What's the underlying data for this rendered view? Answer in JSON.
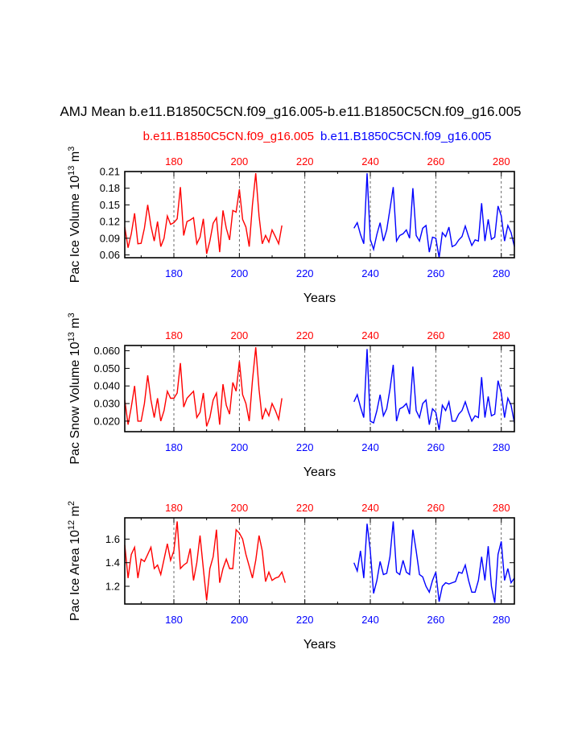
{
  "title": "AMJ Mean b.e11.B1850C5CN.f09_g16.005-b.e11.B1850C5CN.f09_g16.005",
  "legend": {
    "left": "b.e11.B1850C5CN.f09_g16.005",
    "right": "b.e11.B1850C5CN.f09_g16.005"
  },
  "colors": {
    "red_case": "#ff0000",
    "blue_case": "#0000ff",
    "axis": "#000000"
  },
  "chart_data": [
    {
      "type": "line",
      "ylabel": "Pac Ice Volume 10^13 m^3",
      "ylabel_parts": {
        "main": "Pac Ice Volume 10",
        "exp1": "13",
        "mid": " m",
        "exp2": "3"
      },
      "xlabel": "Years",
      "xlim": [
        165,
        284
      ],
      "ylim": [
        0.055,
        0.21
      ],
      "yticks": [
        0.06,
        0.09,
        0.12,
        0.15,
        0.18,
        0.21
      ],
      "ytick_labels": [
        "0.06",
        "0.09",
        "0.12",
        "0.15",
        "0.18",
        "0.21"
      ],
      "top_xticks": [
        "180",
        "200",
        "220",
        "240",
        "260",
        "280"
      ],
      "bottom_xticks": [
        "180",
        "200",
        "220",
        "240",
        "260",
        "280"
      ],
      "vlines": [
        180,
        200,
        220,
        240,
        260,
        280
      ],
      "series": [
        {
          "color": "red",
          "x": [
            165,
            166,
            167,
            168,
            169,
            170,
            171,
            172,
            173,
            174,
            175,
            176,
            177,
            178,
            179,
            180,
            181,
            182,
            183,
            184,
            185,
            186,
            187,
            188,
            189,
            190,
            191,
            192,
            193,
            194,
            195,
            196,
            197,
            198,
            199,
            200,
            201,
            202,
            203,
            204,
            205,
            206,
            207,
            208,
            209,
            210,
            211,
            212,
            213,
            214
          ],
          "values": [
            0.11,
            0.073,
            0.098,
            0.135,
            0.08,
            0.081,
            0.108,
            0.15,
            0.112,
            0.085,
            0.12,
            0.075,
            0.09,
            0.13,
            0.115,
            0.118,
            0.125,
            0.182,
            0.095,
            0.12,
            0.123,
            0.127,
            0.08,
            0.092,
            0.125,
            0.062,
            0.085,
            0.117,
            0.127,
            0.065,
            0.14,
            0.108,
            0.087,
            0.14,
            0.137,
            0.178,
            0.124,
            0.11,
            0.075,
            0.15,
            0.207,
            0.13,
            0.08,
            0.095,
            0.083,
            0.105,
            0.093,
            0.08,
            0.113,
            null
          ]
        },
        {
          "color": "blue",
          "x": [
            235,
            236,
            237,
            238,
            239,
            240,
            241,
            242,
            243,
            244,
            245,
            246,
            247,
            248,
            249,
            250,
            251,
            252,
            253,
            254,
            255,
            256,
            257,
            258,
            259,
            260,
            261,
            262,
            263,
            264,
            265,
            266,
            267,
            268,
            269,
            270,
            271,
            272,
            273,
            274,
            275,
            276,
            277,
            278,
            279,
            280,
            281,
            282,
            283,
            284
          ],
          "values": [
            0.108,
            0.118,
            0.097,
            0.08,
            0.207,
            0.088,
            0.07,
            0.097,
            0.118,
            0.085,
            0.105,
            0.142,
            0.182,
            0.085,
            0.095,
            0.098,
            0.105,
            0.09,
            0.18,
            0.095,
            0.085,
            0.108,
            0.113,
            0.065,
            0.092,
            0.09,
            0.055,
            0.1,
            0.093,
            0.11,
            0.075,
            0.078,
            0.087,
            0.093,
            0.112,
            0.093,
            0.077,
            0.087,
            0.085,
            0.153,
            0.085,
            0.124,
            0.088,
            0.092,
            0.148,
            0.13,
            0.085,
            0.113,
            0.1,
            0.075
          ]
        }
      ]
    },
    {
      "type": "line",
      "ylabel": "Pac Snow Volume 10^13 m^3",
      "ylabel_parts": {
        "main": "Pac Snow Volume 10",
        "exp1": "13",
        "mid": " m",
        "exp2": "3"
      },
      "xlabel": "Years",
      "xlim": [
        165,
        284
      ],
      "ylim": [
        0.014,
        0.063
      ],
      "yticks": [
        0.02,
        0.03,
        0.04,
        0.05,
        0.06
      ],
      "ytick_labels": [
        "0.020",
        "0.030",
        "0.040",
        "0.050",
        "0.060"
      ],
      "top_xticks": [
        "180",
        "200",
        "220",
        "240",
        "260",
        "280"
      ],
      "bottom_xticks": [
        "180",
        "200",
        "220",
        "240",
        "260",
        "280"
      ],
      "vlines": [
        180,
        200,
        220,
        240,
        260,
        280
      ],
      "series": [
        {
          "color": "red",
          "x": [
            165,
            166,
            167,
            168,
            169,
            170,
            171,
            172,
            173,
            174,
            175,
            176,
            177,
            178,
            179,
            180,
            181,
            182,
            183,
            184,
            185,
            186,
            187,
            188,
            189,
            190,
            191,
            192,
            193,
            194,
            195,
            196,
            197,
            198,
            199,
            200,
            201,
            202,
            203,
            204,
            205,
            206,
            207,
            208,
            209,
            210,
            211,
            212,
            213,
            214
          ],
          "values": [
            0.032,
            0.018,
            0.028,
            0.04,
            0.02,
            0.02,
            0.03,
            0.046,
            0.032,
            0.022,
            0.033,
            0.02,
            0.026,
            0.037,
            0.033,
            0.033,
            0.036,
            0.053,
            0.028,
            0.033,
            0.035,
            0.037,
            0.022,
            0.025,
            0.036,
            0.017,
            0.022,
            0.032,
            0.036,
            0.018,
            0.041,
            0.029,
            0.024,
            0.042,
            0.037,
            0.054,
            0.035,
            0.03,
            0.02,
            0.043,
            0.062,
            0.038,
            0.021,
            0.027,
            0.023,
            0.03,
            0.026,
            0.021,
            0.033,
            null
          ]
        },
        {
          "color": "blue",
          "x": [
            235,
            236,
            237,
            238,
            239,
            240,
            241,
            242,
            243,
            244,
            245,
            246,
            247,
            248,
            249,
            250,
            251,
            252,
            253,
            254,
            255,
            256,
            257,
            258,
            259,
            260,
            261,
            262,
            263,
            264,
            265,
            266,
            267,
            268,
            269,
            270,
            271,
            272,
            273,
            274,
            275,
            276,
            277,
            278,
            279,
            280,
            281,
            282,
            283,
            284
          ],
          "values": [
            0.031,
            0.035,
            0.028,
            0.022,
            0.061,
            0.02,
            0.019,
            0.026,
            0.035,
            0.023,
            0.027,
            0.038,
            0.052,
            0.02,
            0.027,
            0.028,
            0.03,
            0.024,
            0.051,
            0.026,
            0.022,
            0.03,
            0.032,
            0.018,
            0.027,
            0.025,
            0.015,
            0.029,
            0.026,
            0.031,
            0.02,
            0.02,
            0.024,
            0.026,
            0.031,
            0.025,
            0.02,
            0.023,
            0.022,
            0.045,
            0.022,
            0.034,
            0.023,
            0.024,
            0.043,
            0.036,
            0.022,
            0.033,
            0.029,
            0.019
          ]
        }
      ]
    },
    {
      "type": "line",
      "ylabel": "Pac Ice Area 10^12 m^2",
      "ylabel_parts": {
        "main": "Pac Ice Area 10",
        "exp1": "12",
        "mid": " m",
        "exp2": "2"
      },
      "xlabel": "Years",
      "xlim": [
        165,
        284
      ],
      "ylim": [
        1.05,
        1.78
      ],
      "yticks": [
        1.2,
        1.4,
        1.6
      ],
      "ytick_labels": [
        "1.2",
        "1.4",
        "1.6"
      ],
      "top_xticks": [
        "180",
        "200",
        "220",
        "240",
        "260",
        "280"
      ],
      "bottom_xticks": [
        "180",
        "200",
        "220",
        "240",
        "260",
        "280"
      ],
      "vlines": [
        180,
        200,
        220,
        240,
        260,
        280
      ],
      "series": [
        {
          "color": "red",
          "x": [
            165,
            166,
            167,
            168,
            169,
            170,
            171,
            172,
            173,
            174,
            175,
            176,
            177,
            178,
            179,
            180,
            181,
            182,
            183,
            184,
            185,
            186,
            187,
            188,
            189,
            190,
            191,
            192,
            193,
            194,
            195,
            196,
            197,
            198,
            199,
            200,
            201,
            202,
            203,
            204,
            205,
            206,
            207,
            208,
            209,
            210,
            211,
            212,
            213,
            214
          ],
          "values": [
            1.55,
            1.27,
            1.47,
            1.53,
            1.27,
            1.43,
            1.41,
            1.47,
            1.53,
            1.35,
            1.38,
            1.3,
            1.43,
            1.56,
            1.42,
            1.5,
            1.75,
            1.35,
            1.38,
            1.4,
            1.52,
            1.25,
            1.4,
            1.63,
            1.35,
            1.08,
            1.35,
            1.45,
            1.68,
            1.23,
            1.35,
            1.43,
            1.35,
            1.35,
            1.68,
            1.65,
            1.6,
            1.47,
            1.37,
            1.27,
            1.42,
            1.63,
            1.5,
            1.24,
            1.32,
            1.25,
            1.27,
            1.28,
            1.32,
            1.23
          ]
        },
        {
          "color": "blue",
          "x": [
            235,
            236,
            237,
            238,
            239,
            240,
            241,
            242,
            243,
            244,
            245,
            246,
            247,
            248,
            249,
            250,
            251,
            252,
            253,
            254,
            255,
            256,
            257,
            258,
            259,
            260,
            261,
            262,
            263,
            264,
            265,
            266,
            267,
            268,
            269,
            270,
            271,
            272,
            273,
            274,
            275,
            276,
            277,
            278,
            279,
            280,
            281,
            282,
            283,
            284
          ],
          "values": [
            1.4,
            1.33,
            1.5,
            1.27,
            1.73,
            1.5,
            1.14,
            1.25,
            1.41,
            1.3,
            1.31,
            1.45,
            1.75,
            1.32,
            1.3,
            1.42,
            1.32,
            1.3,
            1.68,
            1.5,
            1.3,
            1.28,
            1.2,
            1.15,
            1.25,
            1.32,
            1.07,
            1.2,
            1.23,
            1.22,
            1.23,
            1.24,
            1.32,
            1.31,
            1.38,
            1.25,
            1.15,
            1.15,
            1.25,
            1.45,
            1.25,
            1.54,
            1.2,
            1.06,
            1.47,
            1.58,
            1.25,
            1.35,
            1.23,
            1.27
          ]
        }
      ]
    }
  ]
}
